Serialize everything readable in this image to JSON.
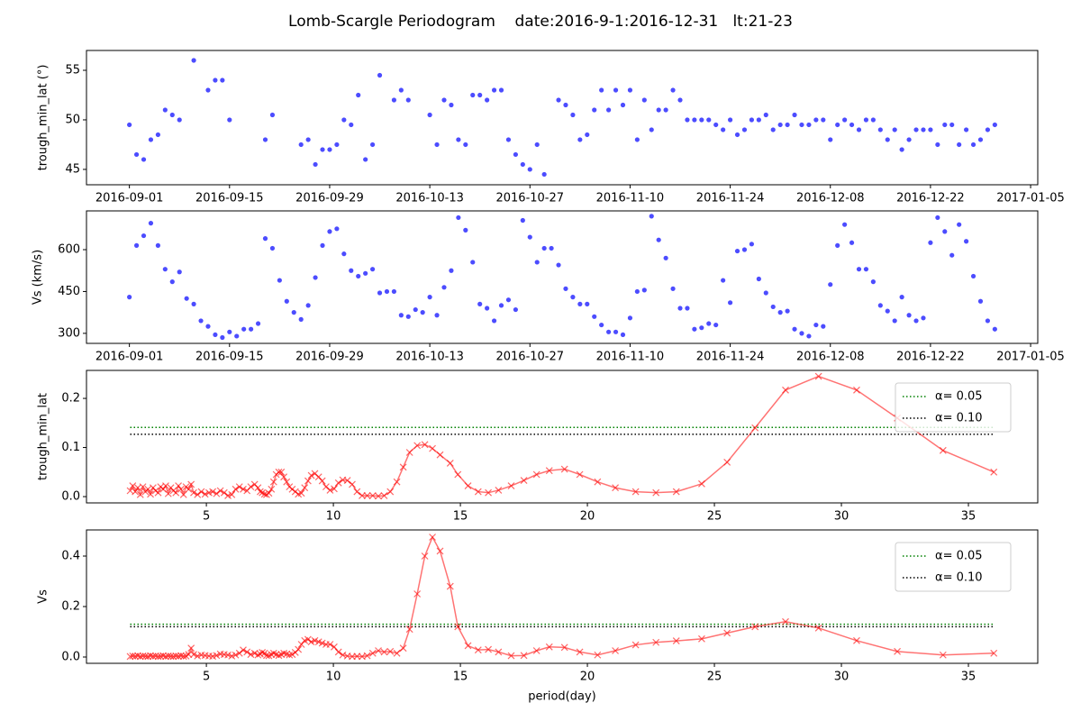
{
  "title": "Lomb-Scargle Periodogram    date:2016-9-1:2016-12-31   lt:21-23",
  "chart_data": [
    {
      "type": "scatter",
      "ylabel": "trough_min_lat (°)",
      "color": "blue",
      "x": [
        "2016-09-01",
        "2016-09-02",
        "2016-09-03",
        "2016-09-04",
        "2016-09-05",
        "2016-09-06",
        "2016-09-07",
        "2016-09-08",
        "2016-09-09",
        "2016-09-10",
        "2016-09-11",
        "2016-09-12",
        "2016-09-13",
        "2016-09-14",
        "2016-09-15",
        "2016-09-16",
        "2016-09-17",
        "2016-09-18",
        "2016-09-19",
        "2016-09-20",
        "2016-09-21",
        "2016-09-22",
        "2016-09-23",
        "2016-09-24",
        "2016-09-25",
        "2016-09-26",
        "2016-09-27",
        "2016-09-28",
        "2016-09-29",
        "2016-09-30",
        "2016-10-01",
        "2016-10-02",
        "2016-10-03",
        "2016-10-04",
        "2016-10-05",
        "2016-10-06",
        "2016-10-07",
        "2016-10-08",
        "2016-10-09",
        "2016-10-10",
        "2016-10-11",
        "2016-10-12",
        "2016-10-13",
        "2016-10-14",
        "2016-10-15",
        "2016-10-16",
        "2016-10-17",
        "2016-10-18",
        "2016-10-19",
        "2016-10-20",
        "2016-10-21",
        "2016-10-22",
        "2016-10-23",
        "2016-10-24",
        "2016-10-25",
        "2016-10-26",
        "2016-10-27",
        "2016-10-28",
        "2016-10-29",
        "2016-10-30",
        "2016-10-31",
        "2016-11-01",
        "2016-11-02",
        "2016-11-03",
        "2016-11-04",
        "2016-11-05",
        "2016-11-06",
        "2016-11-07",
        "2016-11-08",
        "2016-11-09",
        "2016-11-10",
        "2016-11-11",
        "2016-11-12",
        "2016-11-13",
        "2016-11-14",
        "2016-11-15",
        "2016-11-16",
        "2016-11-17",
        "2016-11-18",
        "2016-11-19",
        "2016-11-20",
        "2016-11-21",
        "2016-11-22",
        "2016-11-23",
        "2016-11-24",
        "2016-11-25",
        "2016-11-26",
        "2016-11-27",
        "2016-11-28",
        "2016-11-29",
        "2016-11-30",
        "2016-12-01",
        "2016-12-02",
        "2016-12-03",
        "2016-12-04",
        "2016-12-05",
        "2016-12-06",
        "2016-12-07",
        "2016-12-08",
        "2016-12-09",
        "2016-12-10",
        "2016-12-11",
        "2016-12-12",
        "2016-12-13",
        "2016-12-14",
        "2016-12-15",
        "2016-12-16",
        "2016-12-17",
        "2016-12-18",
        "2016-12-19",
        "2016-12-20",
        "2016-12-21",
        "2016-12-22",
        "2016-12-23",
        "2016-12-24",
        "2016-12-25",
        "2016-12-26",
        "2016-12-27",
        "2016-12-28",
        "2016-12-29",
        "2016-12-30",
        "2016-12-31"
      ],
      "values": [
        49.5,
        46.5,
        46,
        48,
        48.5,
        51,
        50.5,
        50,
        null,
        56,
        null,
        53,
        54,
        54,
        50,
        null,
        null,
        null,
        null,
        48,
        50.5,
        null,
        null,
        null,
        47.5,
        48,
        45.5,
        47,
        47,
        47.5,
        50,
        49.5,
        52.5,
        46,
        47.5,
        54.5,
        null,
        52,
        53,
        52,
        null,
        null,
        50.5,
        47.5,
        52,
        51.5,
        48,
        47.5,
        52.5,
        52.5,
        52,
        53,
        53,
        48,
        46.5,
        45.5,
        45,
        47.5,
        44.5,
        null,
        52,
        51.5,
        50.5,
        48,
        48.5,
        51,
        53,
        51,
        53,
        51.5,
        53,
        48,
        52,
        49,
        51,
        51,
        53,
        52,
        50,
        50,
        50,
        50,
        49.5,
        49,
        50,
        48.5,
        49,
        50,
        50,
        50.5,
        49,
        49.5,
        49.5,
        50.5,
        49.5,
        49.5,
        50,
        50,
        48,
        49.5,
        50,
        49.5,
        49,
        50,
        50,
        49,
        48,
        49,
        47,
        48,
        49,
        49,
        49,
        47.5,
        49.5,
        49.5,
        47.5,
        49,
        47.5,
        48,
        49,
        49.5
      ],
      "xlim": [
        "2016-08-26",
        "2017-01-06"
      ],
      "xticks": [
        "2016-09-01",
        "2016-09-15",
        "2016-09-29",
        "2016-10-13",
        "2016-10-27",
        "2016-11-10",
        "2016-11-24",
        "2016-12-08",
        "2016-12-22",
        "2017-01-05"
      ],
      "ylim": [
        43.45,
        57
      ],
      "yticks": [
        45,
        50,
        55
      ]
    },
    {
      "type": "scatter",
      "ylabel": "Vs (km/s)",
      "color": "blue",
      "x": [
        "2016-09-01",
        "2016-09-02",
        "2016-09-03",
        "2016-09-04",
        "2016-09-05",
        "2016-09-06",
        "2016-09-07",
        "2016-09-08",
        "2016-09-09",
        "2016-09-10",
        "2016-09-11",
        "2016-09-12",
        "2016-09-13",
        "2016-09-14",
        "2016-09-15",
        "2016-09-16",
        "2016-09-17",
        "2016-09-18",
        "2016-09-19",
        "2016-09-20",
        "2016-09-21",
        "2016-09-22",
        "2016-09-23",
        "2016-09-24",
        "2016-09-25",
        "2016-09-26",
        "2016-09-27",
        "2016-09-28",
        "2016-09-29",
        "2016-09-30",
        "2016-10-01",
        "2016-10-02",
        "2016-10-03",
        "2016-10-04",
        "2016-10-05",
        "2016-10-06",
        "2016-10-07",
        "2016-10-08",
        "2016-10-09",
        "2016-10-10",
        "2016-10-11",
        "2016-10-12",
        "2016-10-13",
        "2016-10-14",
        "2016-10-15",
        "2016-10-16",
        "2016-10-17",
        "2016-10-18",
        "2016-10-19",
        "2016-10-20",
        "2016-10-21",
        "2016-10-22",
        "2016-10-23",
        "2016-10-24",
        "2016-10-25",
        "2016-10-26",
        "2016-10-27",
        "2016-10-28",
        "2016-10-29",
        "2016-10-30",
        "2016-10-31",
        "2016-11-01",
        "2016-11-02",
        "2016-11-03",
        "2016-11-04",
        "2016-11-05",
        "2016-11-06",
        "2016-11-07",
        "2016-11-08",
        "2016-11-09",
        "2016-11-10",
        "2016-11-11",
        "2016-11-12",
        "2016-11-13",
        "2016-11-14",
        "2016-11-15",
        "2016-11-16",
        "2016-11-17",
        "2016-11-18",
        "2016-11-19",
        "2016-11-20",
        "2016-11-21",
        "2016-11-22",
        "2016-11-23",
        "2016-11-24",
        "2016-11-25",
        "2016-11-26",
        "2016-11-27",
        "2016-11-28",
        "2016-11-29",
        "2016-11-30",
        "2016-12-01",
        "2016-12-02",
        "2016-12-03",
        "2016-12-04",
        "2016-12-05",
        "2016-12-06",
        "2016-12-07",
        "2016-12-08",
        "2016-12-09",
        "2016-12-10",
        "2016-12-11",
        "2016-12-12",
        "2016-12-13",
        "2016-12-14",
        "2016-12-15",
        "2016-12-16",
        "2016-12-17",
        "2016-12-18",
        "2016-12-19",
        "2016-12-20",
        "2016-12-21",
        "2016-12-22",
        "2016-12-23",
        "2016-12-24",
        "2016-12-25",
        "2016-12-26",
        "2016-12-27",
        "2016-12-28",
        "2016-12-29",
        "2016-12-30",
        "2016-12-31"
      ],
      "values": [
        430,
        615,
        650,
        695,
        615,
        530,
        485,
        520,
        425,
        405,
        345,
        325,
        295,
        285,
        305,
        290,
        315,
        315,
        335,
        640,
        605,
        490,
        415,
        375,
        350,
        400,
        500,
        615,
        665,
        675,
        585,
        525,
        505,
        515,
        530,
        445,
        450,
        450,
        365,
        360,
        385,
        375,
        430,
        365,
        465,
        525,
        715,
        670,
        555,
        405,
        390,
        345,
        400,
        420,
        385,
        705,
        645,
        555,
        605,
        605,
        545,
        460,
        430,
        405,
        405,
        360,
        330,
        305,
        305,
        295,
        355,
        450,
        455,
        720,
        635,
        570,
        460,
        390,
        390,
        315,
        320,
        335,
        330,
        490,
        410,
        595,
        600,
        620,
        495,
        445,
        395,
        375,
        380,
        315,
        300,
        290,
        330,
        325,
        475,
        615,
        690,
        625,
        530,
        530,
        485,
        400,
        380,
        345,
        430,
        365,
        345,
        355,
        625,
        715,
        665,
        580,
        690,
        630,
        505,
        415,
        345,
        315
      ],
      "xlim": [
        "2016-08-26",
        "2017-01-06"
      ],
      "xticks": [
        "2016-09-01",
        "2016-09-15",
        "2016-09-29",
        "2016-10-13",
        "2016-10-27",
        "2016-11-10",
        "2016-11-24",
        "2016-12-08",
        "2016-12-22",
        "2017-01-05"
      ],
      "ylim": [
        264,
        739
      ],
      "yticks": [
        300,
        450,
        600
      ]
    },
    {
      "type": "line",
      "ylabel": "trough_min_lat",
      "color": "red",
      "legend": "upper right",
      "x": [
        2.0,
        2.1,
        2.2,
        2.3,
        2.4,
        2.5,
        2.6,
        2.7,
        2.8,
        2.9,
        3.0,
        3.1,
        3.2,
        3.3,
        3.4,
        3.5,
        3.6,
        3.7,
        3.8,
        3.9,
        4.0,
        4.1,
        4.2,
        4.3,
        4.4,
        4.5,
        4.65,
        4.8,
        4.95,
        5.1,
        5.25,
        5.4,
        5.55,
        5.7,
        5.85,
        6.0,
        6.15,
        6.3,
        6.45,
        6.6,
        6.75,
        6.9,
        7.03,
        7.12,
        7.2,
        7.29,
        7.37,
        7.46,
        7.56,
        7.65,
        7.75,
        7.85,
        7.95,
        8.05,
        8.16,
        8.27,
        8.38,
        8.5,
        8.62,
        8.74,
        8.87,
        9.0,
        9.13,
        9.27,
        9.42,
        9.56,
        9.71,
        9.87,
        10.03,
        10.2,
        10.37,
        10.55,
        10.74,
        10.93,
        11.13,
        11.33,
        11.55,
        11.77,
        12.0,
        12.24,
        12.5,
        12.75,
        13.0,
        13.3,
        13.6,
        13.9,
        14.2,
        14.6,
        14.9,
        15.3,
        15.7,
        16.1,
        16.5,
        17.0,
        17.5,
        18.0,
        18.5,
        19.1,
        19.7,
        20.4,
        21.1,
        21.9,
        22.7,
        23.5,
        24.5,
        25.5,
        26.6,
        27.8,
        29.1,
        30.6,
        32.2,
        34.0,
        36.0
      ],
      "values": [
        0.012,
        0.022,
        0.01,
        0.018,
        0.004,
        0.02,
        0.01,
        0.015,
        0.005,
        0.018,
        0.012,
        0.008,
        0.02,
        0.015,
        0.022,
        0.006,
        0.018,
        0.012,
        0.008,
        0.022,
        0.015,
        0.004,
        0.02,
        0.015,
        0.025,
        0.008,
        0.004,
        0.01,
        0.005,
        0.008,
        0.01,
        0.006,
        0.012,
        0.008,
        0.002,
        0.004,
        0.015,
        0.02,
        0.015,
        0.012,
        0.02,
        0.025,
        0.018,
        0.01,
        0.008,
        0.005,
        0.004,
        0.007,
        0.015,
        0.03,
        0.045,
        0.05,
        0.05,
        0.04,
        0.03,
        0.02,
        0.015,
        0.01,
        0.005,
        0.007,
        0.018,
        0.032,
        0.043,
        0.047,
        0.04,
        0.032,
        0.02,
        0.013,
        0.016,
        0.028,
        0.034,
        0.033,
        0.025,
        0.01,
        0.002,
        0.002,
        0.002,
        0.001,
        0.002,
        0.01,
        0.03,
        0.06,
        0.09,
        0.104,
        0.106,
        0.098,
        0.085,
        0.068,
        0.045,
        0.022,
        0.01,
        0.008,
        0.013,
        0.022,
        0.033,
        0.045,
        0.053,
        0.056,
        0.045,
        0.03,
        0.018,
        0.01,
        0.008,
        0.01,
        0.026,
        0.07,
        0.14,
        0.217,
        0.245,
        0.217,
        0.16,
        0.094,
        0.05
      ],
      "thresholds": [
        {
          "name": "α= 0.05",
          "color": "green",
          "value": 0.141
        },
        {
          "name": "α= 0.10",
          "color": "black",
          "value": 0.127
        }
      ],
      "xlim": [
        0.28,
        37.73
      ],
      "xticks": [
        5,
        10,
        15,
        20,
        25,
        30,
        35
      ],
      "ylim": [
        -0.0128,
        0.257
      ],
      "yticks": [
        {
          "value": 0,
          "label": "0.0"
        },
        0.1,
        0.2
      ]
    },
    {
      "type": "line",
      "ylabel": "Vs",
      "xlabel": "period(day)",
      "color": "red",
      "legend": "upper right",
      "x": [
        2.0,
        2.1,
        2.2,
        2.3,
        2.4,
        2.5,
        2.6,
        2.7,
        2.8,
        2.9,
        3.0,
        3.1,
        3.2,
        3.3,
        3.4,
        3.5,
        3.6,
        3.7,
        3.8,
        3.9,
        4.0,
        4.1,
        4.2,
        4.3,
        4.4,
        4.5,
        4.65,
        4.8,
        4.95,
        5.1,
        5.25,
        5.4,
        5.55,
        5.7,
        5.85,
        6.0,
        6.15,
        6.3,
        6.45,
        6.6,
        6.75,
        6.9,
        7.03,
        7.12,
        7.2,
        7.29,
        7.37,
        7.46,
        7.56,
        7.65,
        7.75,
        7.85,
        7.95,
        8.05,
        8.16,
        8.27,
        8.38,
        8.5,
        8.62,
        8.74,
        8.87,
        9.0,
        9.13,
        9.27,
        9.42,
        9.56,
        9.71,
        9.87,
        10.03,
        10.2,
        10.37,
        10.55,
        10.74,
        10.93,
        11.13,
        11.33,
        11.55,
        11.77,
        12.0,
        12.24,
        12.5,
        12.75,
        13.0,
        13.3,
        13.6,
        13.9,
        14.2,
        14.6,
        14.9,
        15.3,
        15.7,
        16.1,
        16.5,
        17.0,
        17.5,
        18.0,
        18.5,
        19.1,
        19.7,
        20.4,
        21.1,
        21.9,
        22.7,
        23.5,
        24.5,
        25.5,
        26.6,
        27.8,
        29.1,
        30.6,
        32.2,
        34.0,
        36.0
      ],
      "values": [
        0.002,
        0.004,
        0.003,
        0.005,
        0.002,
        0.004,
        0.003,
        0.002,
        0.005,
        0.003,
        0.004,
        0.002,
        0.003,
        0.005,
        0.002,
        0.004,
        0.003,
        0.002,
        0.004,
        0.003,
        0.005,
        0.003,
        0.004,
        0.01,
        0.035,
        0.01,
        0.004,
        0.008,
        0.006,
        0.004,
        0.003,
        0.006,
        0.012,
        0.01,
        0.008,
        0.004,
        0.008,
        0.015,
        0.028,
        0.02,
        0.01,
        0.015,
        0.008,
        0.012,
        0.018,
        0.015,
        0.006,
        0.005,
        0.01,
        0.015,
        0.01,
        0.006,
        0.01,
        0.015,
        0.012,
        0.008,
        0.01,
        0.018,
        0.03,
        0.05,
        0.065,
        0.07,
        0.06,
        0.065,
        0.06,
        0.055,
        0.05,
        0.05,
        0.04,
        0.02,
        0.008,
        0.004,
        0.002,
        0.003,
        0.002,
        0.005,
        0.015,
        0.025,
        0.02,
        0.022,
        0.015,
        0.035,
        0.11,
        0.25,
        0.4,
        0.475,
        0.42,
        0.28,
        0.12,
        0.045,
        0.028,
        0.03,
        0.02,
        0.005,
        0.006,
        0.025,
        0.04,
        0.038,
        0.02,
        0.008,
        0.025,
        0.048,
        0.058,
        0.064,
        0.072,
        0.095,
        0.12,
        0.14,
        0.115,
        0.065,
        0.022,
        0.008,
        0.015
      ],
      "thresholds": [
        {
          "name": "α= 0.05",
          "color": "green",
          "value": 0.13
        },
        {
          "name": "α= 0.10",
          "color": "black",
          "value": 0.12
        }
      ],
      "xlim": [
        0.28,
        37.73
      ],
      "xticks": [
        5,
        10,
        15,
        20,
        25,
        30,
        35
      ],
      "ylim": [
        -0.025,
        0.5036
      ],
      "yticks": [
        {
          "value": 0,
          "label": "0.0"
        },
        0.2,
        0.4
      ]
    }
  ]
}
